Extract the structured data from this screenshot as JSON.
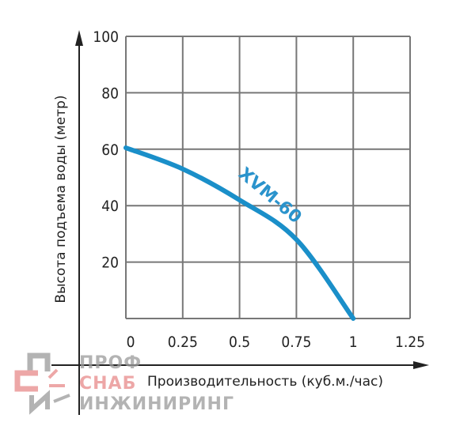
{
  "chart_data": {
    "type": "line",
    "title": "",
    "xlabel": "Производительность (куб.м./час)",
    "ylabel": "Высота подъема воды (метр)",
    "xlim": [
      0,
      1.25
    ],
    "ylim": [
      0,
      100
    ],
    "x_ticks": [
      "0",
      "0.25",
      "0.5",
      "0.75",
      "1",
      "1.25"
    ],
    "y_ticks": [
      "20",
      "40",
      "60",
      "80",
      "100"
    ],
    "grid": true,
    "series": [
      {
        "name": "XVM-60",
        "color": "#1a8fc9",
        "x": [
          0,
          0.25,
          0.5,
          0.75,
          1.0
        ],
        "y": [
          60.5,
          53,
          42,
          28,
          0
        ]
      }
    ]
  },
  "watermark": {
    "lines": [
      "ПРОФ",
      "СНАБ",
      "ИНЖИНИРИНГ"
    ],
    "colors": {
      "gray": "#9a9a9a",
      "red": "#e88a8a"
    }
  }
}
